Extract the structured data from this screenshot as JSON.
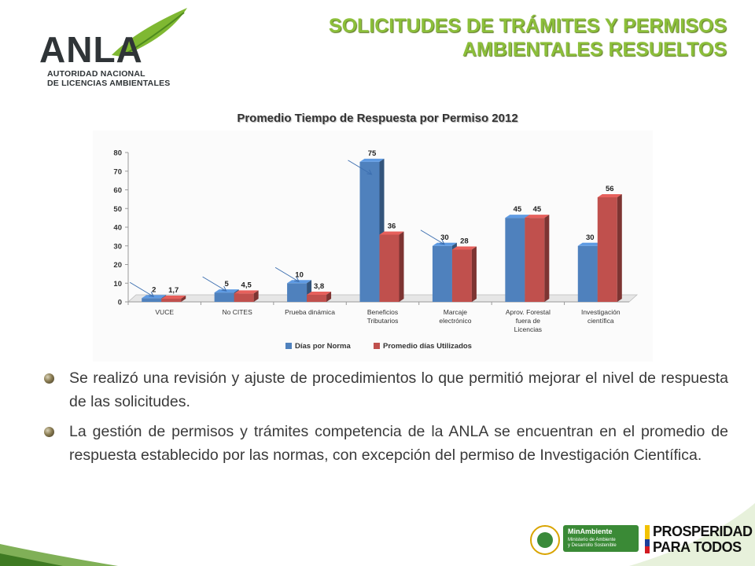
{
  "header": {
    "logo_text": "ANLA",
    "logo_subtitle_line1": "AUTORIDAD NACIONAL",
    "logo_subtitle_line2": "DE LICENCIAS AMBIENTALES",
    "title_line1": "SOLICITUDES DE TRÁMITES Y PERMISOS",
    "title_line2": "AMBIENTALES  RESUELTOS"
  },
  "chart_data": {
    "type": "bar",
    "title": "Promedio Tiempo de Respuesta por Permiso 2012",
    "categories": [
      [
        "VUCE"
      ],
      [
        "No CITES"
      ],
      [
        "Prueba dinámica"
      ],
      [
        "Beneficios",
        "Tributarios"
      ],
      [
        "Marcaje",
        "electrónico"
      ],
      [
        "Aprov. Forestal",
        "fuera de",
        "Licencias"
      ],
      [
        "Investigación",
        "científica"
      ]
    ],
    "series": [
      {
        "name": "Días por Norma",
        "color": "#4f81bd",
        "values": [
          2,
          5,
          10,
          75,
          30,
          45,
          30
        ],
        "labels": [
          "2",
          "5",
          "10",
          "75",
          "30",
          "45",
          "30"
        ]
      },
      {
        "name": "Promedio días Utilizados",
        "color": "#c0504d",
        "values": [
          1.7,
          4.5,
          3.8,
          36,
          28,
          45,
          56
        ],
        "labels": [
          "1,7",
          "4,5",
          "3,8",
          "36",
          "28",
          "45",
          "56"
        ]
      }
    ],
    "ylim": [
      0,
      80
    ],
    "yticks": [
      0,
      10,
      20,
      30,
      40,
      50,
      60,
      70,
      80
    ],
    "grid": false,
    "legend_position": "bottom"
  },
  "bullets": [
    "Se realizó una revisión y ajuste de procedimientos lo que permitió mejorar el nivel de respuesta de las solicitudes.",
    "La gestión de permisos y trámites competencia de la ANLA se encuentran en el promedio de respuesta establecido por las normas, con excepción del permiso de Investigación Científica."
  ],
  "footer": {
    "ministry_name": "MinAmbiente",
    "ministry_sub_line1": "Ministerio de Ambiente",
    "ministry_sub_line2": "y Desarrollo Sostenible",
    "slogan_line1": "PROSPERIDAD",
    "slogan_line2": "PARA TODOS"
  }
}
